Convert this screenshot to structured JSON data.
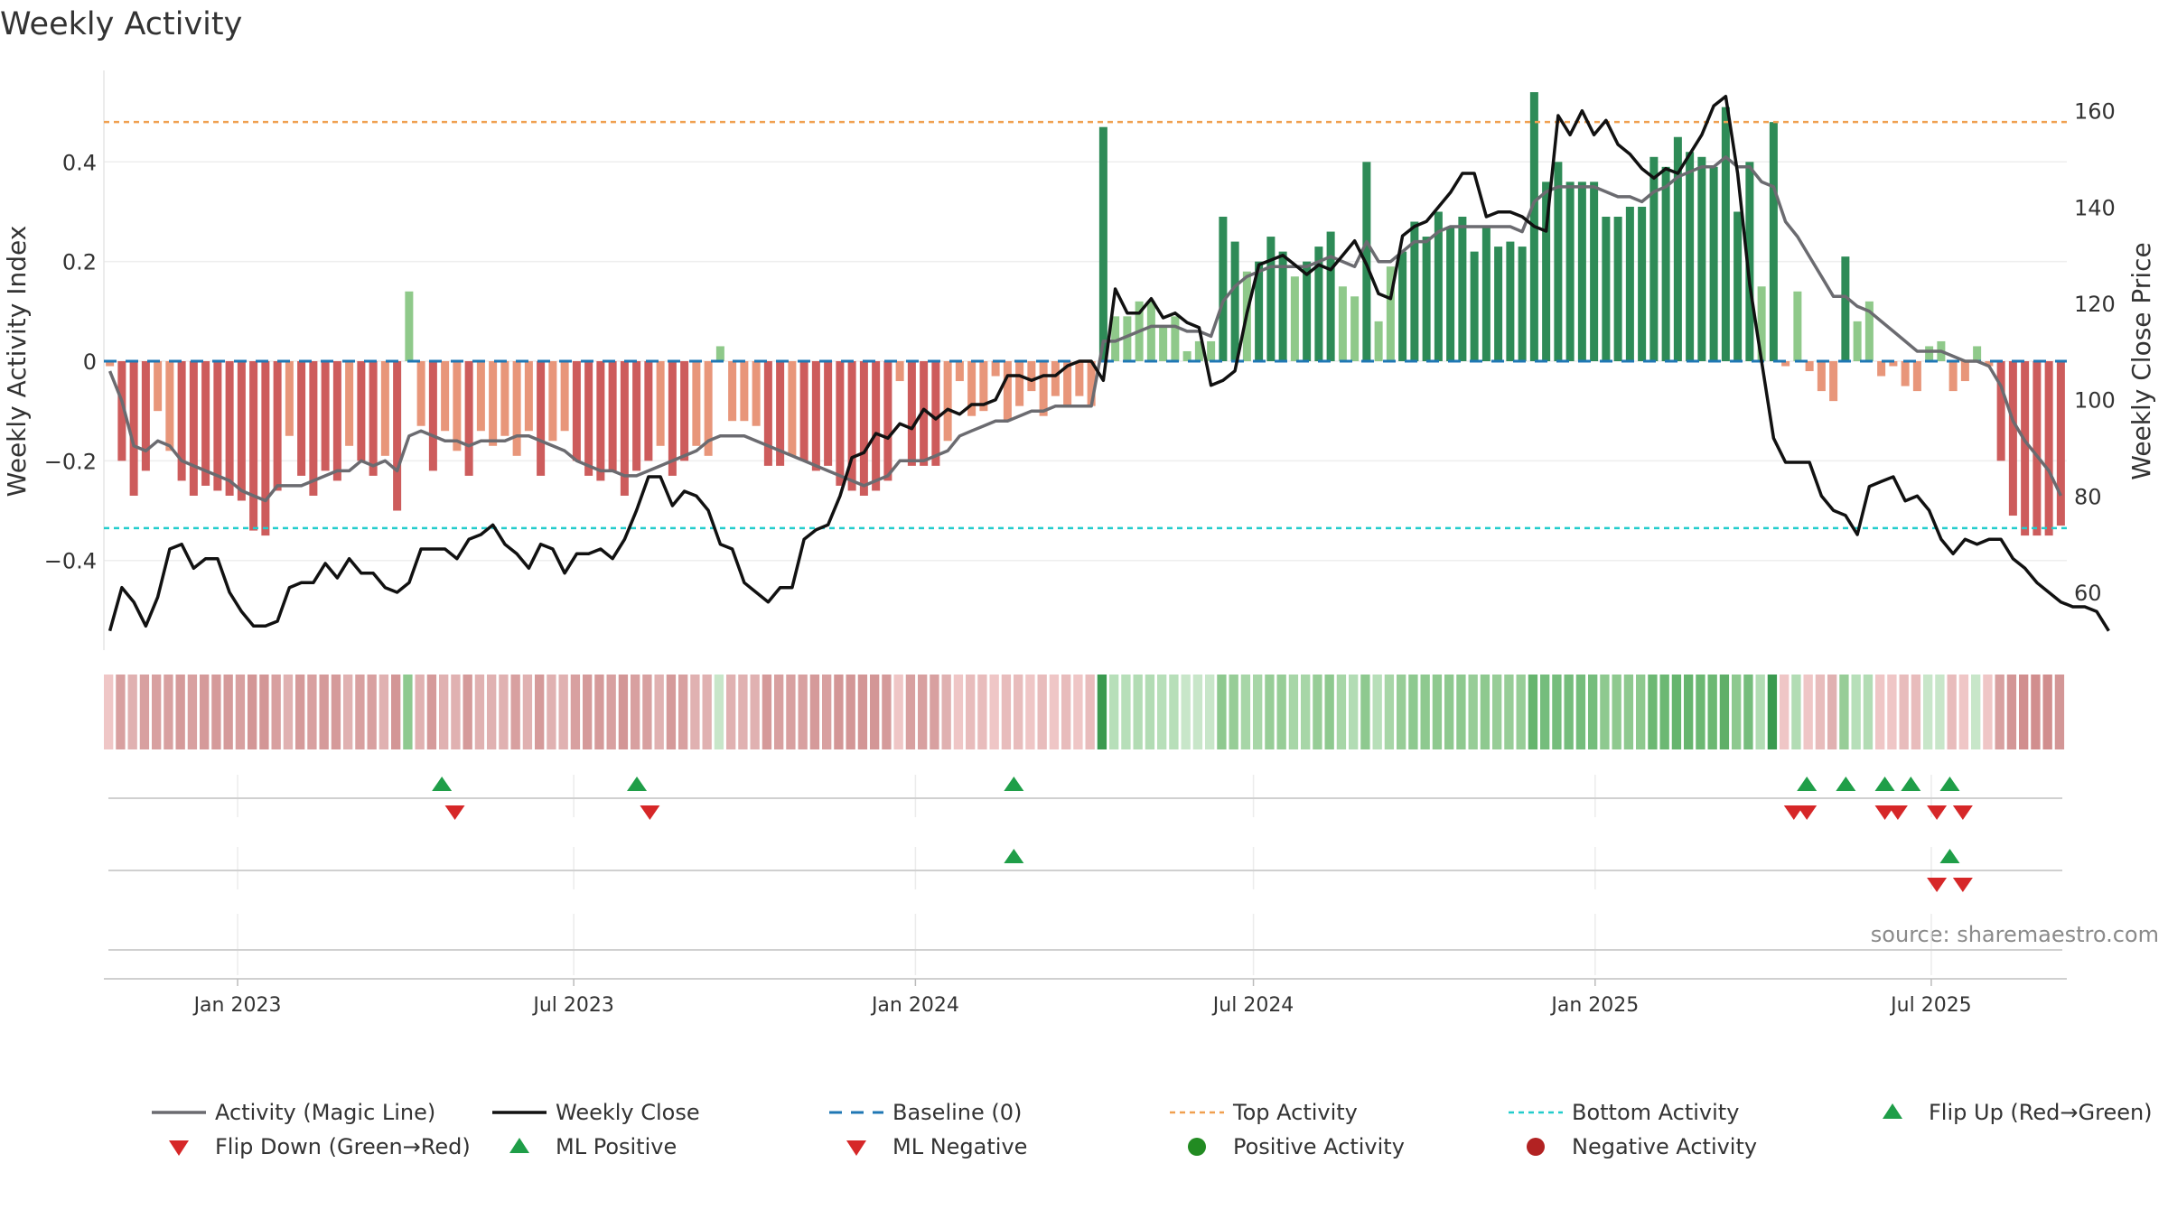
{
  "chart_data": {
    "type": "bar",
    "title": "Weekly Activity",
    "source": "source: sharemaestro.com",
    "ylabel": "Weekly Activity Index",
    "ylabel2": "Weekly Close Price",
    "ylim": [
      -0.58,
      0.58
    ],
    "ylim2": [
      48,
      168
    ],
    "yticks": [
      "0.4",
      "0.2",
      "0",
      "−0.2",
      "−0.4"
    ],
    "yticks2": [
      "160",
      "140",
      "120",
      "100",
      "80",
      "60"
    ],
    "x_start": "2022-10-21",
    "x_end": "2025-09-12",
    "xticks": [
      "Jan 2023",
      "Jul 2023",
      "Jan 2024",
      "Jul 2024",
      "Jan 2025",
      "Jul 2025"
    ],
    "top_activity": 0.48,
    "bottom_activity": -0.335,
    "grid": true,
    "colors": {
      "pos_strong": "#2e8b57",
      "pos_weak": "#8fc98a",
      "neg_strong": "#cd5c5c",
      "neg_weak": "#e8967a",
      "magic_line": "#6b6b70",
      "close_line": "#111111",
      "baseline": "#1f77b4",
      "top_line": "#f0a050",
      "bottom_line": "#22cccc",
      "marker_up": "#1f9e48",
      "marker_down": "#d62728"
    },
    "series": [
      {
        "name": "Weekly Activity",
        "type": "bar",
        "values": [
          -0.01,
          -0.2,
          -0.27,
          -0.22,
          -0.1,
          -0.18,
          -0.24,
          -0.27,
          -0.25,
          -0.26,
          -0.27,
          -0.28,
          -0.34,
          -0.35,
          -0.26,
          -0.15,
          -0.23,
          -0.27,
          -0.22,
          -0.24,
          -0.17,
          -0.2,
          -0.23,
          -0.19,
          -0.3,
          0.14,
          -0.13,
          -0.22,
          -0.14,
          -0.18,
          -0.23,
          -0.14,
          -0.17,
          -0.15,
          -0.19,
          -0.14,
          -0.23,
          -0.16,
          -0.14,
          -0.2,
          -0.23,
          -0.24,
          -0.22,
          -0.27,
          -0.22,
          -0.2,
          -0.17,
          -0.23,
          -0.2,
          -0.17,
          -0.19,
          0.03,
          -0.12,
          -0.12,
          -0.13,
          -0.21,
          -0.21,
          -0.19,
          -0.2,
          -0.22,
          -0.21,
          -0.25,
          -0.26,
          -0.27,
          -0.26,
          -0.24,
          -0.04,
          -0.21,
          -0.21,
          -0.21,
          -0.16,
          -0.04,
          -0.11,
          -0.1,
          -0.03,
          -0.12,
          -0.09,
          -0.06,
          -0.11,
          -0.07,
          -0.09,
          -0.07,
          -0.09,
          0.47,
          0.09,
          0.09,
          0.12,
          0.12,
          0.07,
          0.09,
          0.02,
          0.04,
          0.04,
          0.29,
          0.24,
          0.18,
          0.2,
          0.25,
          0.22,
          0.17,
          0.2,
          0.23,
          0.26,
          0.15,
          0.13,
          0.4,
          0.08,
          0.19,
          0.22,
          0.28,
          0.25,
          0.3,
          0.27,
          0.29,
          0.22,
          0.27,
          0.23,
          0.24,
          0.23,
          0.54,
          0.36,
          0.4,
          0.36,
          0.36,
          0.36,
          0.29,
          0.29,
          0.31,
          0.31,
          0.41,
          0.39,
          0.45,
          0.42,
          0.41,
          0.39,
          0.51,
          0.3,
          0.4,
          0.15,
          0.48,
          -0.01,
          0.14,
          -0.02,
          -0.06,
          -0.08,
          0.21,
          0.08,
          0.12,
          -0.03,
          -0.01,
          -0.05,
          -0.06,
          0.03,
          0.04,
          -0.06,
          -0.04,
          0.03,
          -0.01,
          -0.2,
          -0.31,
          -0.35,
          -0.35,
          -0.35,
          -0.33
        ]
      },
      {
        "name": "Activity (Magic Line)",
        "type": "line",
        "values": [
          -0.02,
          -0.08,
          -0.17,
          -0.18,
          -0.16,
          -0.17,
          -0.2,
          -0.21,
          -0.22,
          -0.23,
          -0.24,
          -0.26,
          -0.27,
          -0.28,
          -0.25,
          -0.25,
          -0.25,
          -0.24,
          -0.23,
          -0.22,
          -0.22,
          -0.2,
          -0.21,
          -0.2,
          -0.22,
          -0.15,
          -0.14,
          -0.15,
          -0.16,
          -0.16,
          -0.17,
          -0.16,
          -0.16,
          -0.16,
          -0.15,
          -0.15,
          -0.16,
          -0.17,
          -0.18,
          -0.2,
          -0.21,
          -0.22,
          -0.22,
          -0.23,
          -0.23,
          -0.22,
          -0.21,
          -0.2,
          -0.19,
          -0.18,
          -0.16,
          -0.15,
          -0.15,
          -0.15,
          -0.16,
          -0.17,
          -0.18,
          -0.19,
          -0.2,
          -0.21,
          -0.22,
          -0.23,
          -0.24,
          -0.25,
          -0.24,
          -0.23,
          -0.2,
          -0.2,
          -0.2,
          -0.19,
          -0.18,
          -0.15,
          -0.14,
          -0.13,
          -0.12,
          -0.12,
          -0.11,
          -0.1,
          -0.1,
          -0.09,
          -0.09,
          -0.09,
          -0.09,
          0.04,
          0.04,
          0.05,
          0.06,
          0.07,
          0.07,
          0.07,
          0.06,
          0.06,
          0.05,
          0.12,
          0.15,
          0.17,
          0.18,
          0.19,
          0.19,
          0.19,
          0.19,
          0.2,
          0.21,
          0.2,
          0.19,
          0.24,
          0.2,
          0.2,
          0.22,
          0.24,
          0.24,
          0.26,
          0.27,
          0.27,
          0.27,
          0.27,
          0.27,
          0.27,
          0.26,
          0.32,
          0.34,
          0.35,
          0.35,
          0.35,
          0.35,
          0.34,
          0.33,
          0.33,
          0.32,
          0.34,
          0.35,
          0.37,
          0.38,
          0.39,
          0.39,
          0.41,
          0.39,
          0.39,
          0.36,
          0.35,
          0.28,
          0.25,
          0.21,
          0.17,
          0.13,
          0.13,
          0.11,
          0.1,
          0.08,
          0.06,
          0.04,
          0.02,
          0.02,
          0.02,
          0.01,
          0,
          0,
          -0.01,
          -0.05,
          -0.12,
          -0.16,
          -0.19,
          -0.22,
          -0.27
        ]
      },
      {
        "name": "Weekly Close",
        "type": "line",
        "axis": "right",
        "values": [
          52,
          61,
          58,
          53,
          59,
          69,
          70,
          65,
          67,
          67,
          60,
          56,
          53,
          53,
          54,
          61,
          62,
          62,
          66,
          63,
          67,
          64,
          64,
          61,
          60,
          62,
          69,
          69,
          69,
          67,
          71,
          72,
          74,
          70,
          68,
          65,
          70,
          69,
          64,
          68,
          68,
          69,
          67,
          71,
          77,
          84,
          84,
          78,
          81,
          80,
          77,
          70,
          69,
          62,
          60,
          58,
          61,
          61,
          71,
          73,
          74,
          80,
          88,
          89,
          93,
          92,
          95,
          94,
          98,
          96,
          98,
          97,
          99,
          99,
          100,
          105,
          105,
          104,
          105,
          105,
          107,
          108,
          108,
          104,
          123,
          118,
          118,
          121,
          117,
          118,
          116,
          115,
          103,
          104,
          106,
          118,
          128,
          129,
          130,
          128,
          126,
          128,
          127,
          130,
          133,
          128,
          122,
          121,
          134,
          136,
          137,
          140,
          143,
          147,
          147,
          138,
          139,
          139,
          138,
          136,
          135,
          159,
          155,
          160,
          155,
          158,
          153,
          151,
          148,
          146,
          148,
          147,
          151,
          155,
          161,
          163,
          147,
          124,
          108,
          92,
          87,
          87,
          87,
          80,
          77,
          76,
          72,
          82,
          83,
          84,
          79,
          80,
          77,
          71,
          68,
          71,
          70,
          71,
          71,
          67,
          65,
          62,
          60,
          58,
          57,
          57,
          56,
          52
        ]
      }
    ],
    "color_strip": [
      "#efc6c6",
      "#d8a0a0",
      "#e0b1b1",
      "#d8a0a0",
      "#d8a0a0",
      "#d8a0a0",
      "#d59a9a",
      "#d8a0a0",
      "#d59a9a",
      "#d59a9a",
      "#d59a9a",
      "#d8a0a0",
      "#d39696",
      "#d39696",
      "#d8a0a0",
      "#e0b1b1",
      "#d59a9a",
      "#d8a0a0",
      "#d59a9a",
      "#d59a9a",
      "#e0b1b1",
      "#d8a0a0",
      "#d8a0a0",
      "#e0b1b1",
      "#d39696",
      "#8ec98f",
      "#e0b1b1",
      "#d59a9a",
      "#e0b1b1",
      "#e0b1b1",
      "#d59a9a",
      "#e0b1b1",
      "#e0b1b1",
      "#e0b1b1",
      "#d8a0a0",
      "#e0b1b1",
      "#d59a9a",
      "#e0b1b1",
      "#e0b1b1",
      "#d8a0a0",
      "#d59a9a",
      "#d59a9a",
      "#d8a0a0",
      "#d39696",
      "#d8a0a0",
      "#d8a0a0",
      "#e0b1b1",
      "#d59a9a",
      "#d8a0a0",
      "#e0b1b1",
      "#e0b1b1",
      "#c8e6c9",
      "#e0b1b1",
      "#e0b1b1",
      "#e0b1b1",
      "#d59a9a",
      "#d8a0a0",
      "#d8a0a0",
      "#d8a0a0",
      "#d59a9a",
      "#d8a0a0",
      "#d39696",
      "#d39696",
      "#d39696",
      "#d39696",
      "#d59a9a",
      "#efc6c6",
      "#d8a0a0",
      "#d8a0a0",
      "#d8a0a0",
      "#e0b1b1",
      "#efc6c6",
      "#e8bcbc",
      "#e8bcbc",
      "#efc6c6",
      "#e8bcbc",
      "#e8bcbc",
      "#efc6c6",
      "#e8bcbc",
      "#efc6c6",
      "#e8bcbc",
      "#efc6c6",
      "#e8bcbc",
      "#3a9a4f",
      "#b7dfb9",
      "#b7dfb9",
      "#b2dcb4",
      "#b2dcb4",
      "#b7dfb9",
      "#b7dfb9",
      "#c8e6c9",
      "#c8e6c9",
      "#c8e6c9",
      "#8ec98f",
      "#97cd97",
      "#a7d6a7",
      "#a7d6a7",
      "#97cd97",
      "#97cd97",
      "#a7d6a7",
      "#a7d6a7",
      "#97cd97",
      "#8ec98f",
      "#a7d6a7",
      "#b2dcb4",
      "#8ec98f",
      "#b7dfb9",
      "#a7d6a7",
      "#97cd97",
      "#8ec98f",
      "#8ec98f",
      "#8ec98f",
      "#8ec98f",
      "#8ec98f",
      "#97cd97",
      "#8ec98f",
      "#97cd97",
      "#97cd97",
      "#97cd97",
      "#66b56e",
      "#75bd7c",
      "#75bd7c",
      "#75bd7c",
      "#75bd7c",
      "#75bd7c",
      "#8ec98f",
      "#8ec98f",
      "#8ec98f",
      "#8ec98f",
      "#6cb873",
      "#6cb873",
      "#66b56e",
      "#66b56e",
      "#6cb873",
      "#6cb873",
      "#5faf68",
      "#8ec98f",
      "#75bd7c",
      "#b2dcb4",
      "#3a9a4f",
      "#efc6c6",
      "#b2dcb4",
      "#efc6c6",
      "#e8bcbc",
      "#e0b1b1",
      "#97cd97",
      "#b7dfb9",
      "#b2dcb4",
      "#efc6c6",
      "#efc6c6",
      "#e8bcbc",
      "#e8bcbc",
      "#c8e6c9",
      "#c8e6c9",
      "#e8bcbc",
      "#efc6c6",
      "#c8e6c9",
      "#efc6c6",
      "#d8a0a0",
      "#d39696",
      "#d18e8e",
      "#d18e8e",
      "#d18e8e",
      "#d39696"
    ],
    "event_rows": [
      {
        "up": [
          "2023-04-21",
          "2023-08-04",
          "2024-02-23",
          "2025-04-25",
          "2025-05-16",
          "2025-06-06",
          "2025-06-20",
          "2025-07-11"
        ],
        "down": [
          "2023-04-28",
          "2023-08-11",
          "2025-04-18",
          "2025-04-25",
          "2025-06-06",
          "2025-06-13",
          "2025-07-04",
          "2025-07-18"
        ]
      },
      {
        "up": [
          "2024-02-23",
          "2025-07-11"
        ],
        "down": [
          "2025-07-04",
          "2025-07-18"
        ]
      },
      {
        "up": [],
        "down": []
      }
    ],
    "legend": [
      [
        "Activity (Magic Line)",
        "Weekly Close",
        "Baseline (0)",
        "Top Activity",
        "Bottom Activity",
        "Flip Up (Red→Green)"
      ],
      [
        "Flip Down (Green→Red)",
        "ML Positive",
        "ML Negative",
        "Positive Activity",
        "Negative Activity"
      ]
    ]
  }
}
